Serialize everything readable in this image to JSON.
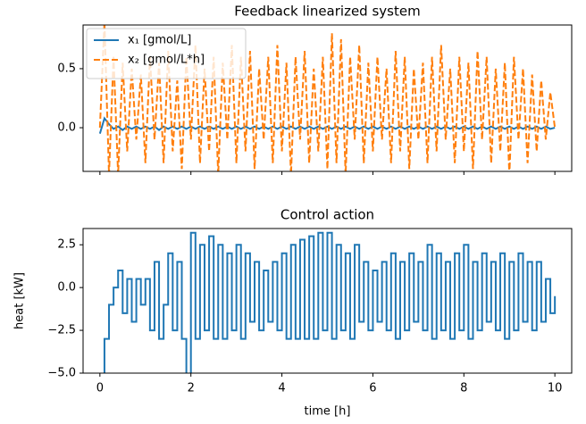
{
  "chart_data": [
    {
      "type": "line",
      "title": "Feedback linearized system",
      "x": [
        0,
        0.1,
        0.2,
        0.3,
        0.4,
        0.5,
        0.6,
        0.7,
        0.8,
        0.9,
        1,
        1.1,
        1.2,
        1.3,
        1.4,
        1.5,
        1.6,
        1.7,
        1.8,
        1.9,
        2,
        2.1,
        2.2,
        2.3,
        2.4,
        2.5,
        2.6,
        2.7,
        2.8,
        2.9,
        3,
        3.1,
        3.2,
        3.3,
        3.4,
        3.5,
        3.6,
        3.7,
        3.8,
        3.9,
        4,
        4.1,
        4.2,
        4.3,
        4.4,
        4.5,
        4.6,
        4.7,
        4.8,
        4.9,
        5,
        5.1,
        5.2,
        5.3,
        5.4,
        5.5,
        5.6,
        5.7,
        5.8,
        5.9,
        6,
        6.1,
        6.2,
        6.3,
        6.4,
        6.5,
        6.6,
        6.7,
        6.8,
        6.9,
        7,
        7.1,
        7.2,
        7.3,
        7.4,
        7.5,
        7.6,
        7.7,
        7.8,
        7.9,
        8,
        8.1,
        8.2,
        8.3,
        8.4,
        8.5,
        8.6,
        8.7,
        8.8,
        8.9,
        9,
        9.1,
        9.2,
        9.3,
        9.4,
        9.5,
        9.6,
        9.7,
        9.8,
        9.9,
        10
      ],
      "series": [
        {
          "name": "x₁ [gmol/L]",
          "color": "#1f77b4",
          "linestyle": "solid",
          "values": [
            -0.05,
            0.08,
            0.03,
            -0.01,
            0.01,
            -0.02,
            0.01,
            -0.01,
            0.01,
            -0.01,
            0.01,
            -0.01,
            0.01,
            -0.02,
            0.01,
            -0.01,
            0.01,
            -0.01,
            0.01,
            -0.01,
            0.01,
            -0.01,
            0.01,
            -0.01,
            0.01,
            -0.01,
            0.01,
            -0.01,
            0.01,
            -0.01,
            0.01,
            -0.01,
            0.01,
            -0.01,
            0.01,
            -0.01,
            0.01,
            -0.01,
            0.01,
            -0.01,
            0.01,
            -0.01,
            0.01,
            -0.01,
            0.01,
            -0.01,
            0.01,
            -0.01,
            0.01,
            -0.01,
            0.01,
            -0.01,
            0.01,
            -0.01,
            0.01,
            -0.01,
            0.01,
            -0.01,
            0.01,
            -0.01,
            0.01,
            -0.01,
            0.01,
            -0.01,
            0.01,
            -0.01,
            0.01,
            -0.01,
            0.01,
            -0.01,
            0.01,
            -0.01,
            0.01,
            -0.01,
            0.01,
            -0.01,
            0.01,
            -0.01,
            0.01,
            -0.01,
            0.01,
            -0.01,
            0.01,
            -0.01,
            0.01,
            -0.01,
            0.01,
            -0.01,
            0.01,
            -0.01,
            0.01,
            -0.01,
            0.01,
            -0.01,
            0.01,
            -0.01,
            0.01,
            -0.01,
            0.01,
            -0.01,
            0
          ]
        },
        {
          "name": "x₂ [gmol/L*h]",
          "color": "#ff7f0e",
          "linestyle": "dashed",
          "values": [
            0.0,
            0.9,
            -0.4,
            0.6,
            -0.4,
            0.55,
            -0.2,
            0.5,
            -0.1,
            0.45,
            -0.3,
            0.6,
            -0.1,
            0.55,
            -0.3,
            0.65,
            -0.2,
            0.4,
            -0.35,
            0.6,
            -0.1,
            0.7,
            -0.3,
            0.5,
            -0.2,
            0.6,
            -0.4,
            0.55,
            -0.1,
            0.7,
            -0.3,
            0.6,
            -0.2,
            0.65,
            -0.35,
            0.5,
            -0.1,
            0.6,
            -0.3,
            0.7,
            -0.2,
            0.55,
            -0.4,
            0.6,
            -0.1,
            0.65,
            -0.3,
            0.5,
            -0.2,
            0.6,
            -0.35,
            0.8,
            -0.3,
            0.75,
            -0.4,
            0.6,
            -0.1,
            0.7,
            -0.3,
            0.55,
            -0.2,
            0.6,
            -0.1,
            0.5,
            -0.3,
            0.65,
            -0.2,
            0.6,
            -0.35,
            0.5,
            -0.1,
            0.55,
            -0.3,
            0.6,
            -0.2,
            0.7,
            -0.1,
            0.5,
            -0.3,
            0.6,
            -0.2,
            0.55,
            -0.35,
            0.65,
            -0.1,
            0.6,
            -0.3,
            0.5,
            -0.2,
            0.55,
            -0.4,
            0.6,
            -0.1,
            0.5,
            -0.3,
            0.45,
            -0.2,
            0.4,
            -0.1,
            0.3,
            0.0
          ]
        }
      ],
      "xlim": [
        -0.37,
        10.37
      ],
      "ylim": [
        -0.37,
        0.87
      ],
      "yticks": [
        {
          "value": 0,
          "label": "0.0"
        },
        {
          "value": 0.5,
          "label": "0.5"
        }
      ],
      "legend": "upper left"
    },
    {
      "type": "step",
      "title": "Control action",
      "xlabel": "time [h]",
      "ylabel": "heat [kW]",
      "x": [
        0,
        0.1,
        0.2,
        0.3,
        0.4,
        0.5,
        0.6,
        0.7,
        0.8,
        0.9,
        1,
        1.1,
        1.2,
        1.3,
        1.4,
        1.5,
        1.6,
        1.7,
        1.8,
        1.9,
        2,
        2.1,
        2.2,
        2.3,
        2.4,
        2.5,
        2.6,
        2.7,
        2.8,
        2.9,
        3,
        3.1,
        3.2,
        3.3,
        3.4,
        3.5,
        3.6,
        3.7,
        3.8,
        3.9,
        4,
        4.1,
        4.2,
        4.3,
        4.4,
        4.5,
        4.6,
        4.7,
        4.8,
        4.9,
        5,
        5.1,
        5.2,
        5.3,
        5.4,
        5.5,
        5.6,
        5.7,
        5.8,
        5.9,
        6,
        6.1,
        6.2,
        6.3,
        6.4,
        6.5,
        6.6,
        6.7,
        6.8,
        6.9,
        7,
        7.1,
        7.2,
        7.3,
        7.4,
        7.5,
        7.6,
        7.7,
        7.8,
        7.9,
        8,
        8.1,
        8.2,
        8.3,
        8.4,
        8.5,
        8.6,
        8.7,
        8.8,
        8.9,
        9,
        9.1,
        9.2,
        9.3,
        9.4,
        9.5,
        9.6,
        9.7,
        9.8,
        9.9,
        10
      ],
      "series": [
        {
          "color": "#1f77b4",
          "linestyle": "solid",
          "values": [
            -5.5,
            -3,
            -1,
            0,
            1,
            -1.5,
            0.5,
            -2,
            0.5,
            -1,
            0.5,
            -2.5,
            1.5,
            -3,
            -1,
            2,
            -2.5,
            1.5,
            -3,
            -5.5,
            3.2,
            -3,
            2.5,
            -2.5,
            3,
            -3,
            2.5,
            -3,
            2,
            -2.5,
            2.5,
            -3,
            2,
            -2,
            1.5,
            -2.5,
            1,
            -2,
            1.5,
            -2.5,
            2,
            -3,
            2.5,
            -3,
            2.8,
            -3,
            3,
            -3,
            3.2,
            -2.5,
            3.2,
            -3,
            2.5,
            -2.5,
            2,
            -3,
            2.5,
            -2,
            1.5,
            -2.5,
            1,
            -2,
            1.5,
            -2.5,
            2,
            -3,
            1.5,
            -2.5,
            2,
            -2,
            1.5,
            -2.5,
            2.5,
            -3,
            2,
            -2.5,
            1.5,
            -3,
            2,
            -2.5,
            2.5,
            -3,
            1.5,
            -2.5,
            2,
            -2,
            1.5,
            -2.5,
            2,
            -3,
            1.5,
            -2.5,
            2,
            -2,
            1.5,
            -2.5,
            1.5,
            -2,
            0.5,
            -1.5,
            -0.5
          ]
        }
      ],
      "xlim": [
        -0.37,
        10.37
      ],
      "ylim": [
        -5,
        3.45
      ],
      "xticks": [
        0,
        2,
        4,
        6,
        8,
        10
      ],
      "yticks": [
        {
          "value": -5,
          "label": "−5.0"
        },
        {
          "value": -2.5,
          "label": "−2.5"
        },
        {
          "value": 0,
          "label": "0.0"
        },
        {
          "value": 2.5,
          "label": "2.5"
        }
      ]
    }
  ]
}
